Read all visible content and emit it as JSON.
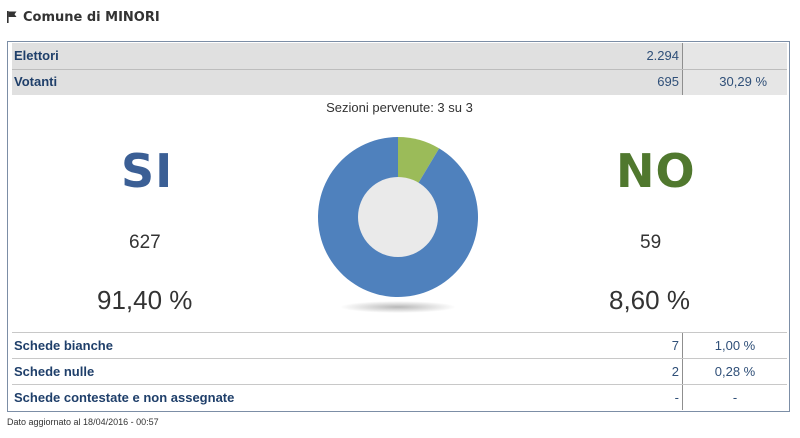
{
  "header": {
    "title": "Comune di MINORI",
    "icon": "flag-icon"
  },
  "summary": {
    "elettori": {
      "label": "Elettori",
      "value": "2.294"
    },
    "votanti": {
      "label": "Votanti",
      "value": "695",
      "percent": "30,29 %"
    }
  },
  "sezioni": "Sezioni pervenute: 3 su 3",
  "result": {
    "si": {
      "label": "SI",
      "count": "627",
      "percent": "91,40 %",
      "color": "#4f81bd"
    },
    "no": {
      "label": "NO",
      "count": "59",
      "percent": "8,60 %",
      "color": "#9bbb59"
    }
  },
  "chart_data": {
    "type": "pie",
    "categories": [
      "SI",
      "NO"
    ],
    "values": [
      91.4,
      8.6
    ],
    "colors": [
      "#4f81bd",
      "#9bbb59"
    ]
  },
  "details": [
    {
      "label": "Schede bianche",
      "value": "7",
      "percent": "1,00 %"
    },
    {
      "label": "Schede nulle",
      "value": "2",
      "percent": "0,28 %"
    },
    {
      "label": "Schede contestate e non assegnate",
      "value": "-",
      "percent": "-"
    }
  ],
  "footer": "Dato aggiornato al 18/04/2016 - 00:57"
}
